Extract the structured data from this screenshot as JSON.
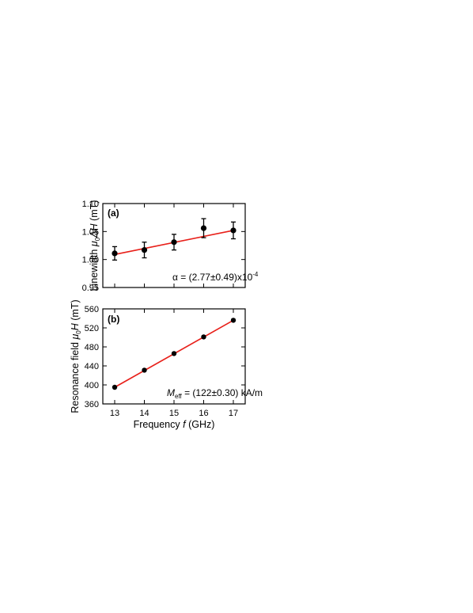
{
  "chart_data": [
    {
      "type": "scatter",
      "panel_label": "(a)",
      "ylabel": "Linewidth μ₀ΔH (mT)",
      "ylabel_parts": [
        "Linewidth ",
        "μ",
        "0",
        "ΔH",
        " (mT)"
      ],
      "xlabel": "Frequency f (GHz)",
      "xlim": [
        12.6,
        17.4
      ],
      "ylim": [
        0.95,
        1.1
      ],
      "xticks": [
        13,
        14,
        15,
        16,
        17
      ],
      "yticks": [
        0.95,
        1.0,
        1.05,
        1.1
      ],
      "ytick_labels": [
        "0.95",
        "1.00",
        "1.05",
        "1.10"
      ],
      "x": [
        13,
        14,
        15,
        16,
        17
      ],
      "y": [
        1.011,
        1.017,
        1.031,
        1.056,
        1.052
      ],
      "yerr": [
        0.012,
        0.014,
        0.014,
        0.017,
        0.015
      ],
      "fit": {
        "x": [
          13,
          17
        ],
        "y": [
          1.009,
          1.052
        ]
      },
      "annotation": "α = (2.77±0.49)x10⁻⁴",
      "annotation_parts": [
        "α = (2.77±0.49)x10",
        "-4"
      ]
    },
    {
      "type": "scatter",
      "panel_label": "(b)",
      "ylabel": "Resonance field μ₀H (mT)",
      "ylabel_parts": [
        "Resonance field ",
        "μ",
        "0",
        "H",
        " (mT)"
      ],
      "xlabel": "Frequency f (GHz)",
      "xlabel_parts": [
        "Frequency ",
        "f",
        " (GHz)"
      ],
      "xlim": [
        12.6,
        17.4
      ],
      "ylim": [
        360,
        560
      ],
      "xticks": [
        13,
        14,
        15,
        16,
        17
      ],
      "xtick_labels": [
        "13",
        "14",
        "15",
        "16",
        "17"
      ],
      "yticks": [
        360,
        400,
        440,
        480,
        520,
        560
      ],
      "ytick_labels": [
        "360",
        "400",
        "440",
        "480",
        "520",
        "560"
      ],
      "x": [
        13,
        14,
        15,
        16,
        17
      ],
      "y": [
        395,
        431,
        466,
        501,
        536
      ],
      "fit": {
        "x": [
          13,
          17
        ],
        "y": [
          395,
          536
        ]
      },
      "annotation": "Meff = (122±0.30) kA/m",
      "annotation_parts": [
        "M",
        "eff",
        " = (122±0.30) kA/m"
      ]
    }
  ],
  "colors": {
    "fit_line": "#e8201a",
    "marker": "#000000",
    "axis": "#000000"
  }
}
